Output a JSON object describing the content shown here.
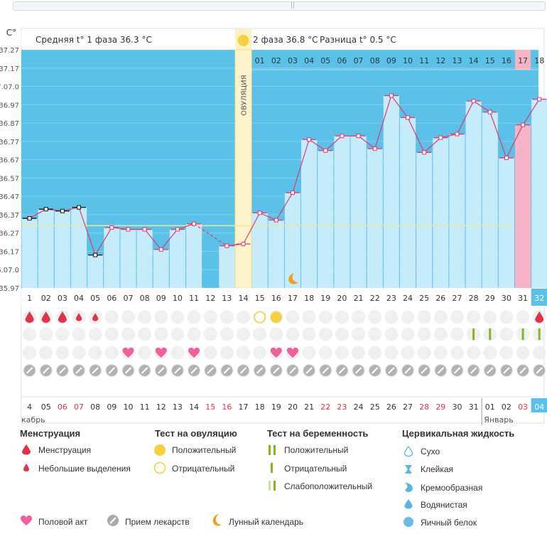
{
  "header": {
    "unit": "C°",
    "phase1": "Средняя t° 1 фаза 36.3 °C",
    "phase2": "2 фаза 36.8 °C",
    "diff": "Разница t° 0.5 °C",
    "ovulation_label": "ОВУЛЯЦИЯ"
  },
  "chart_data": {
    "type": "line",
    "ylabel": "C°",
    "yticks": [
      "37.27",
      "37.17",
      "37.07.0",
      "36.97",
      "36.87",
      "36.77",
      "36.67",
      "36.57",
      "36.47",
      "36.37",
      "36.27",
      "36.17",
      "36.07.0",
      "35.97"
    ],
    "ylim": [
      35.97,
      37.27
    ],
    "cycle_days": [
      "1",
      "02",
      "03",
      "04",
      "05",
      "06",
      "07",
      "08",
      "09",
      "10",
      "11",
      "12",
      "13",
      "14",
      "15",
      "16",
      "17",
      "18",
      "19",
      "20",
      "21",
      "22",
      "23",
      "24",
      "25",
      "26",
      "27",
      "28",
      "29",
      "30",
      "31",
      "32"
    ],
    "temperatures": [
      36.35,
      36.4,
      36.39,
      36.41,
      36.15,
      36.3,
      36.29,
      36.29,
      36.18,
      36.29,
      36.32,
      null,
      36.2,
      36.21,
      36.38,
      36.34,
      36.49,
      36.78,
      36.72,
      36.8,
      36.8,
      36.73,
      37.02,
      36.9,
      36.71,
      36.79,
      36.81,
      36.99,
      36.93,
      36.68,
      36.86,
      37.0
    ],
    "ovulation_day": 14,
    "coverline": 36.31,
    "phase2_days": [
      "01",
      "02",
      "03",
      "04",
      "05",
      "06",
      "07",
      "08",
      "09",
      "10",
      "11",
      "12",
      "13",
      "14",
      "15",
      "16",
      "17",
      "18"
    ],
    "dates": [
      "4",
      "05",
      "06",
      "07",
      "08",
      "09",
      "10",
      "11",
      "12",
      "13",
      "14",
      "15",
      "16",
      "17",
      "18",
      "19",
      "20",
      "21",
      "22",
      "23",
      "24",
      "25",
      "26",
      "27",
      "28",
      "29",
      "30",
      "31",
      "01",
      "02",
      "03",
      "04"
    ],
    "red_dates": [
      2,
      3,
      11,
      12,
      18,
      19,
      24,
      25,
      30
    ],
    "months": [
      "кабрь",
      "Январь"
    ],
    "events": {
      "menstruation": [
        1,
        2,
        3,
        4,
        5,
        32
      ],
      "ovulation_test_negative": [
        15
      ],
      "ovulation_test_positive": [
        16
      ],
      "pregnancy_test": [
        28,
        29,
        31,
        32
      ],
      "sex": [
        7,
        9,
        11,
        16,
        17
      ],
      "moon": [
        17
      ],
      "medication_all": true
    }
  },
  "legend": {
    "menstruation_title": "Менструация",
    "menstruation": "Менструация",
    "spotting": "Небольшие выделения",
    "ovulation_test_title": "Тест на овуляцию",
    "positive": "Положительный",
    "negative": "Отрицательный",
    "pregnancy_test_title": "Тест на беременность",
    "preg_positive": "Положительный",
    "preg_negative": "Отрицательный",
    "preg_weak": "Слабоположительный",
    "cervical_title": "Цервикальная жидкость",
    "dry": "Сухо",
    "sticky": "Клейкая",
    "creamy": "Кремообразная",
    "watery": "Водянистая",
    "eggwhite": "Яичный белок",
    "sex": "Половой акт",
    "meds": "Прием лекарств",
    "moon": "Лунный календарь",
    "colors": {
      "blue": "#5bc1e8",
      "lightblue": "#c6ebfb",
      "red": "#e0344a",
      "pink": "#f0609e",
      "yellow": "#f7d041",
      "green": "#7fb81e",
      "gray": "#aaaaaa",
      "line": "#e03a6e"
    }
  }
}
